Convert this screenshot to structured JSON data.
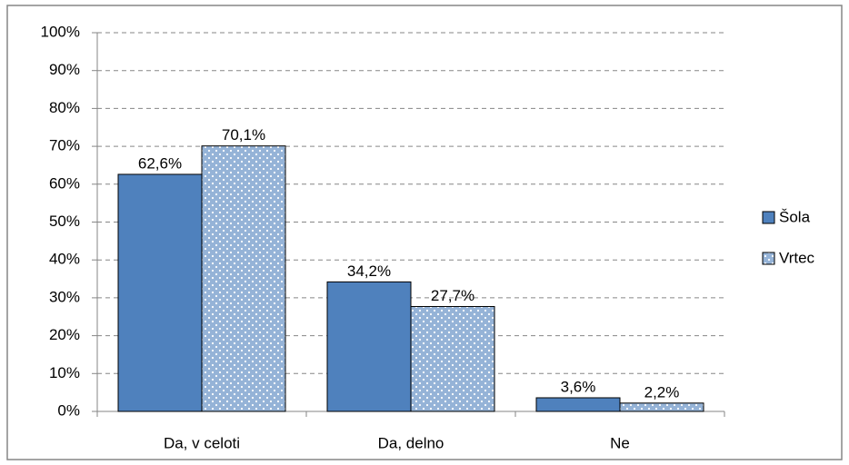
{
  "chart_data": {
    "type": "bar",
    "categories": [
      "Da, v celoti",
      "Da, delno",
      "Ne"
    ],
    "series": [
      {
        "name": "Šola",
        "color": "#4f81bd",
        "values": [
          62.6,
          34.2,
          3.6
        ],
        "value_labels": [
          "62,6%",
          "34,2%",
          "3,6%"
        ]
      },
      {
        "name": "Vrtec",
        "color": "#95b3d7",
        "pattern": "dots",
        "values": [
          70.1,
          27.7,
          2.2
        ],
        "value_labels": [
          "70,1%",
          "27,7%",
          "2,2%"
        ]
      }
    ],
    "ylim": [
      0,
      100
    ],
    "yticks": [
      {
        "value": 0,
        "label": "0%"
      },
      {
        "value": 10,
        "label": "10%"
      },
      {
        "value": 20,
        "label": "20%"
      },
      {
        "value": 30,
        "label": "30%"
      },
      {
        "value": 40,
        "label": "40%"
      },
      {
        "value": 50,
        "label": "50%"
      },
      {
        "value": 60,
        "label": "60%"
      },
      {
        "value": 70,
        "label": "70%"
      },
      {
        "value": 80,
        "label": "80%"
      },
      {
        "value": 90,
        "label": "90%"
      },
      {
        "value": 100,
        "label": "100%"
      }
    ],
    "grid": true,
    "legend": "right"
  }
}
